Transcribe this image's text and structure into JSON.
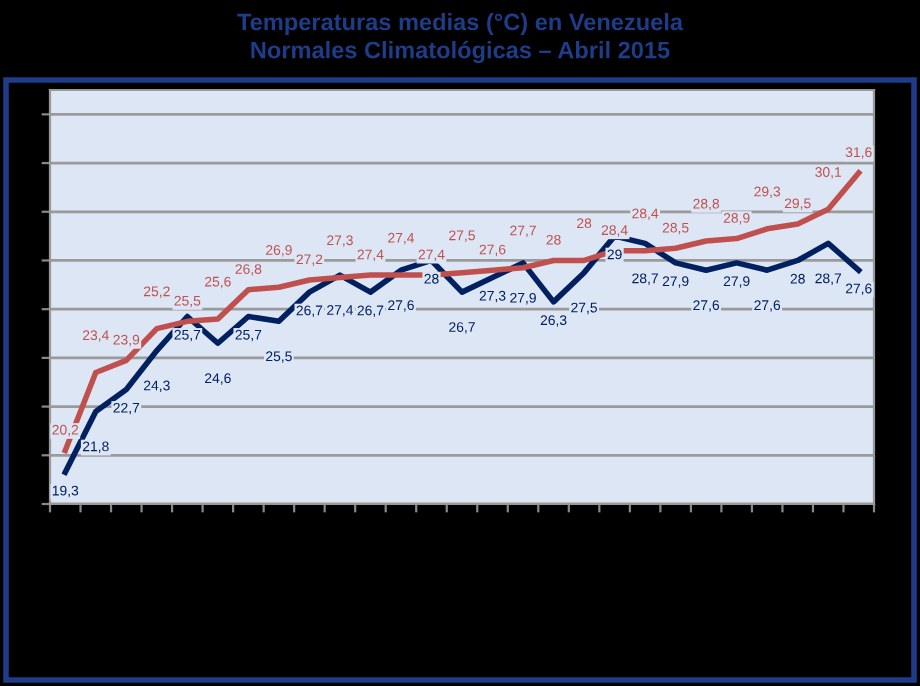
{
  "chart_data": {
    "type": "line",
    "title": "Temperaturas medias (°C) en Venezuela",
    "subtitle": "Normales Climatológicas – Abril 2015",
    "categories": [
      null,
      null,
      null,
      null,
      null,
      null,
      null,
      null,
      null,
      null,
      null,
      null,
      null,
      null,
      null,
      null,
      null,
      null,
      null,
      null,
      null,
      null,
      null,
      null,
      null,
      null,
      null
    ],
    "series": [
      {
        "color": "#002060",
        "values": [
          19.3,
          21.8,
          22.7,
          24.3,
          25.7,
          24.6,
          25.7,
          25.5,
          26.7,
          27.4,
          26.7,
          27.6,
          28,
          26.7,
          27.3,
          27.9,
          26.3,
          27.5,
          29,
          28.7,
          27.9,
          27.6,
          27.9,
          27.6,
          28,
          28.7,
          27.6
        ],
        "value_labels": [
          "19,3",
          "21,8",
          "22,7",
          "24,3",
          "25,7",
          "24,6",
          "25,7",
          "25,5",
          "26,7",
          "27,4",
          "26,7",
          "27,6",
          "28",
          "26,7",
          "27,3",
          "27,9",
          "26,3",
          "27,5",
          "29",
          "28,7",
          "27,9",
          "27,6",
          "27,9",
          "27,6",
          "28",
          "28,7",
          "27,6"
        ]
      },
      {
        "color": "#c0504d",
        "values": [
          20.2,
          23.4,
          23.9,
          25.2,
          25.5,
          25.6,
          26.8,
          26.9,
          27.2,
          27.3,
          27.4,
          27.4,
          27.4,
          27.5,
          27.6,
          27.7,
          28,
          28,
          28.4,
          28.4,
          28.5,
          28.8,
          28.9,
          29.3,
          29.5,
          30.1,
          31.6
        ],
        "value_labels": [
          "20,2",
          "23,4",
          "23,9",
          "25,2",
          "25,5",
          "25,6",
          "26,8",
          "26,9",
          "27,2",
          "27,3",
          "27,4",
          "27,4",
          "27,4",
          "27,5",
          "27,6",
          "27,7",
          "28",
          "28",
          "28,4",
          "28,4",
          "28,5",
          "28,8",
          "28,9",
          "29,3",
          "29,5",
          "30,1",
          "31,6"
        ]
      }
    ],
    "ylim": [
      18,
      35
    ],
    "yticks": [
      {
        "value": 18,
        "label": null
      },
      {
        "value": 20,
        "label": null
      },
      {
        "value": 22,
        "label": null
      },
      {
        "value": 24,
        "label": null
      },
      {
        "value": 26,
        "label": null
      },
      {
        "value": 28,
        "label": null
      },
      {
        "value": 30,
        "label": null
      },
      {
        "value": 32,
        "label": null
      },
      {
        "value": 34,
        "label": null
      }
    ],
    "grid": "y",
    "marker": "none",
    "line_style": "solid"
  }
}
